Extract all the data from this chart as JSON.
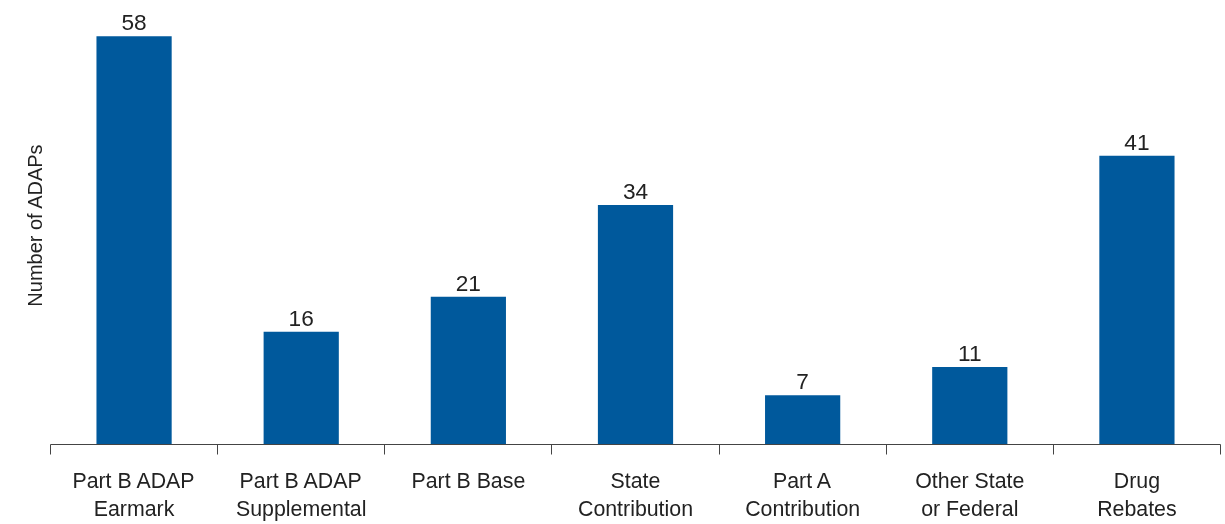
{
  "chart_data": {
    "type": "bar",
    "ylabel": "Number of ADAPs",
    "categories": [
      "Part B ADAP\nEarmark",
      "Part B ADAP\nSupplemental",
      "Part B Base",
      "State\nContribution",
      "Part A\nContribution",
      "Other State\nor Federal",
      "Drug\nRebates"
    ],
    "values": [
      58,
      16,
      21,
      34,
      7,
      11,
      41
    ],
    "color": "#00599c",
    "data_labels": true,
    "grid": false,
    "tick_labels": "x"
  }
}
